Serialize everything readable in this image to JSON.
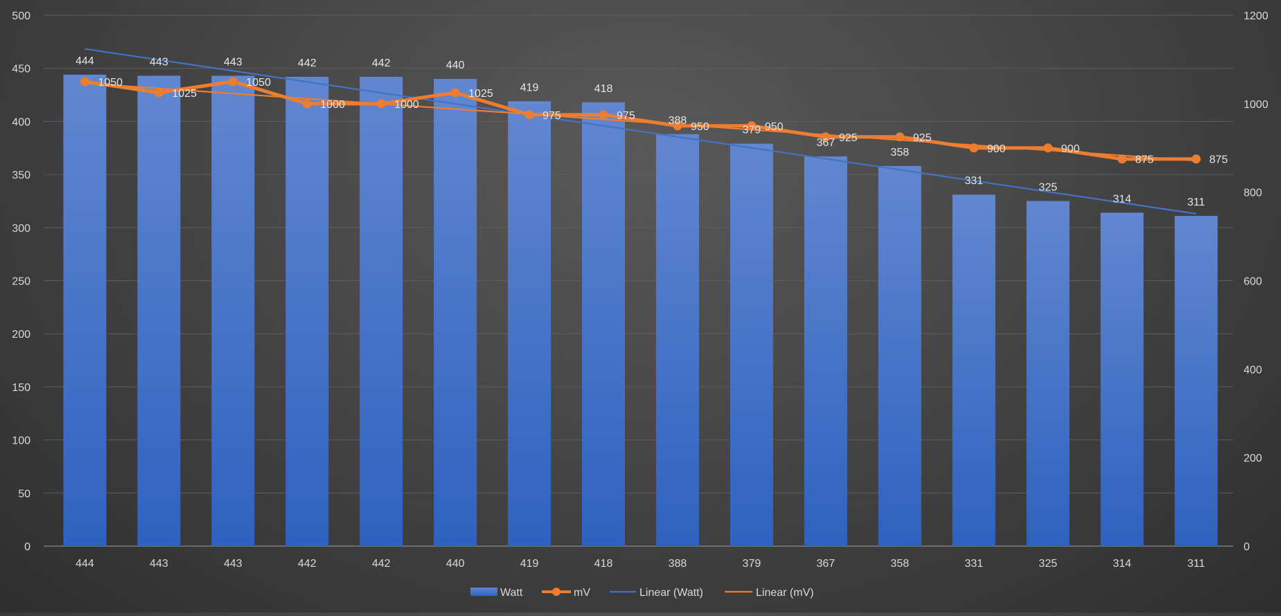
{
  "chart_data": {
    "type": "bar",
    "categories": [
      "444",
      "443",
      "443",
      "442",
      "442",
      "440",
      "419",
      "418",
      "388",
      "379",
      "367",
      "358",
      "331",
      "325",
      "314",
      "311"
    ],
    "series": [
      {
        "name": "Watt",
        "type": "bar",
        "axis": "left",
        "color": "#4472c4",
        "values": [
          444,
          443,
          443,
          442,
          442,
          440,
          419,
          418,
          388,
          379,
          367,
          358,
          331,
          325,
          314,
          311
        ],
        "labels": [
          "444",
          "443",
          "443",
          "442",
          "442",
          "440",
          "419",
          "418",
          "388",
          "379",
          "367",
          "358",
          "331",
          "325",
          "314",
          "311"
        ]
      },
      {
        "name": "mV",
        "type": "line",
        "axis": "right",
        "color": "#ed7d31",
        "values": [
          1050,
          1025,
          1050,
          1000,
          1000,
          1025,
          975,
          975,
          950,
          950,
          925,
          925,
          900,
          900,
          875,
          875
        ],
        "labels": [
          "1050",
          "1025",
          "1050",
          "1000",
          "1000",
          "1025",
          "975",
          "975",
          "950",
          "950",
          "925",
          "925",
          "900",
          "900",
          "875",
          "875"
        ]
      }
    ],
    "trendlines": [
      {
        "name": "Linear (Watt)",
        "series": "Watt",
        "color": "#4472c4",
        "start": 468.3,
        "end": 313.0
      },
      {
        "name": "Linear (mV)",
        "series": "mV",
        "color": "#ed7d31",
        "start": 1046.3,
        "end": 871.3
      }
    ],
    "y_left": {
      "min": 0,
      "max": 500,
      "step": 50,
      "ticks": [
        "0",
        "50",
        "100",
        "150",
        "200",
        "250",
        "300",
        "350",
        "400",
        "450",
        "500"
      ]
    },
    "y_right": {
      "min": 0,
      "max": 1200,
      "step": 200,
      "ticks": [
        "0",
        "200",
        "400",
        "600",
        "800",
        "1000",
        "1200"
      ]
    },
    "legend": {
      "position": "bottom",
      "items": [
        "Watt",
        "mV",
        "Linear (Watt)",
        "Linear (mV)"
      ]
    },
    "grid": true,
    "title": "",
    "xlabel": "",
    "ylabel": ""
  }
}
